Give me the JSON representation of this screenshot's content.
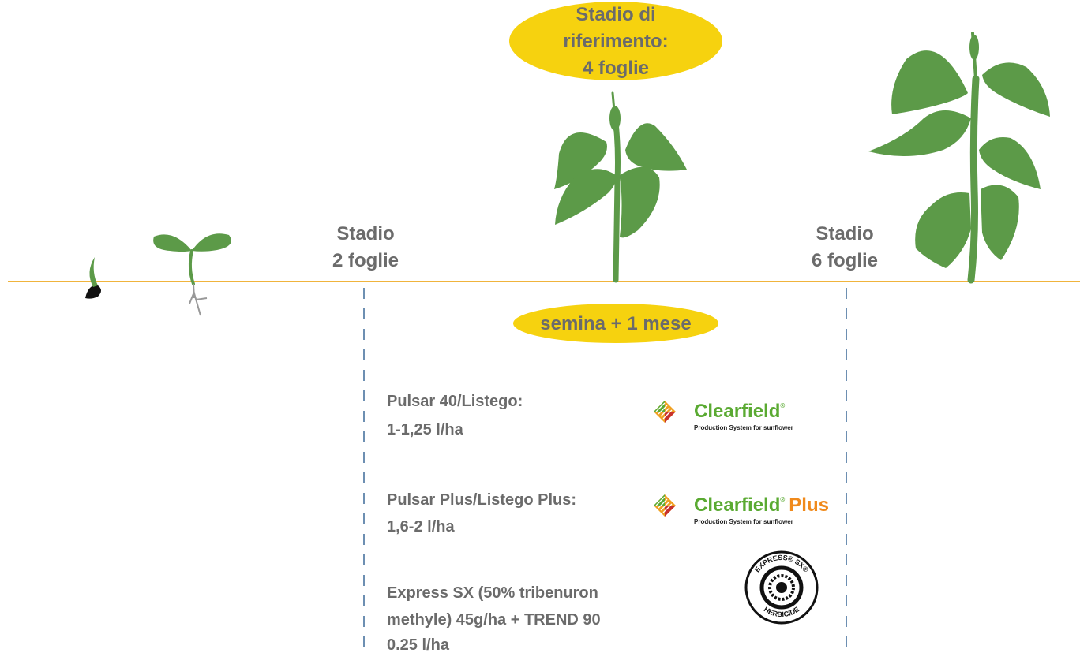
{
  "reference_stage": {
    "lines": [
      "Stadio di",
      "riferimento:",
      "4 foglie"
    ]
  },
  "stage_2_leaves": {
    "lines": [
      "Stadio",
      "2 foglie"
    ]
  },
  "stage_6_leaves": {
    "lines": [
      "Stadio",
      "6 foglie"
    ]
  },
  "timing": "semina + 1 mese",
  "treatments": [
    {
      "lines": [
        "Pulsar 40/Listego:",
        "1-1,25 l/ha"
      ],
      "logo": {
        "name": "Clearfield",
        "registered": "®",
        "tagline": "Production System for sunflower"
      }
    },
    {
      "lines": [
        "Pulsar Plus/Listego Plus:",
        "1,6-2 l/ha"
      ],
      "logo": {
        "name": "Clearfield",
        "registered": "®",
        "suffix": "Plus",
        "tagline": "Production System for sunflower"
      }
    },
    {
      "lines": [
        "Express SX (50% tribenuron",
        "methyle) 45g/ha + TREND 90",
        "0.25 l/ha"
      ],
      "logo": {
        "top": "EXPRESS® SX®",
        "bottom": "HERBICIDE"
      }
    }
  ]
}
